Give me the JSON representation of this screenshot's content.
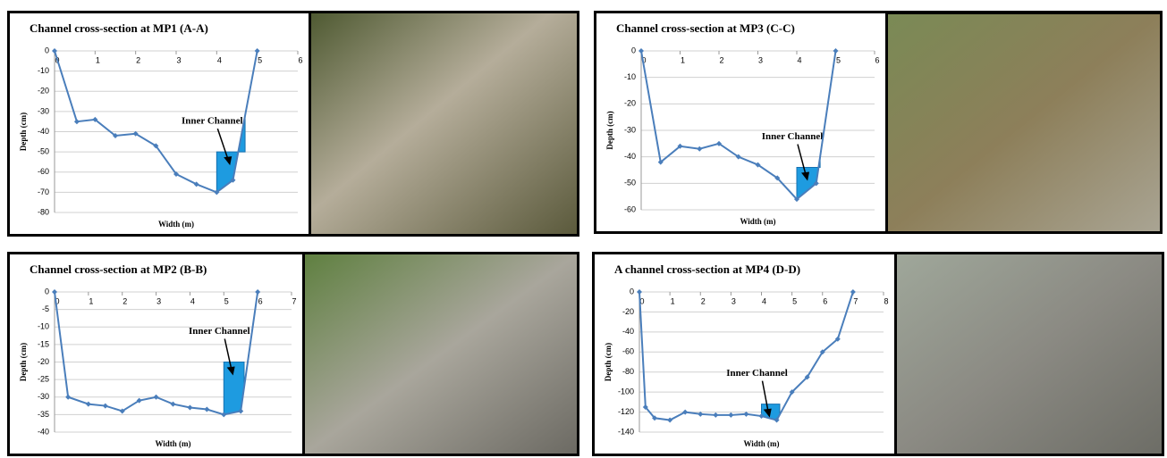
{
  "chart_data": [
    {
      "type": "line",
      "title": "Channel cross-section at MP1 (A-A)",
      "x_label": "Width (m)",
      "y_label": "Depth (cm)",
      "x": [
        0,
        0.55,
        1,
        1.5,
        2,
        2.5,
        3,
        3.5,
        4,
        4.4,
        5
      ],
      "values": [
        0,
        -35,
        -34,
        -42,
        -41,
        -47,
        -61,
        -66,
        -70,
        -64,
        0
      ],
      "color": "#4a7ebb",
      "xlim": [
        0,
        6
      ],
      "xticks": [
        0,
        1,
        2,
        3,
        4,
        5,
        6
      ],
      "ylim": [
        -80,
        0
      ],
      "yticks": [
        0,
        -10,
        -20,
        -30,
        -40,
        -50,
        -60,
        -70,
        -80
      ],
      "grid": true,
      "inner_channel": {
        "label": "Inner Channel",
        "x": [
          4,
          4.7
        ],
        "level": -50,
        "color": "#1e9be0"
      }
    },
    {
      "type": "line",
      "title": "Channel cross-section at MP3 (C-C)",
      "x_label": "Width (m)",
      "y_label": "Depth (cm)",
      "x": [
        0,
        0.5,
        1,
        1.5,
        2,
        2.5,
        3,
        3.5,
        4,
        4.5,
        5
      ],
      "values": [
        0,
        -42,
        -36,
        -37,
        -35,
        -40,
        -43,
        -48,
        -56,
        -50,
        0
      ],
      "color": "#4a7ebb",
      "xlim": [
        0,
        6
      ],
      "xticks": [
        0,
        1,
        2,
        3,
        4,
        5,
        6
      ],
      "ylim": [
        -60,
        0
      ],
      "yticks": [
        0,
        -10,
        -20,
        -30,
        -40,
        -50,
        -60
      ],
      "grid": true,
      "inner_channel": {
        "label": "Inner Channel",
        "x": [
          4,
          4.6
        ],
        "level": -44,
        "color": "#1e9be0"
      }
    },
    {
      "type": "line",
      "title": "Channel cross-section at MP2 (B-B)",
      "x_label": "Width (m)",
      "y_label": "Depth (cm)",
      "x": [
        0,
        0.4,
        1,
        1.5,
        2,
        2.5,
        3,
        3.5,
        4,
        4.5,
        5,
        5.5,
        6
      ],
      "values": [
        0,
        -30,
        -32,
        -32.5,
        -34,
        -31,
        -30,
        -32,
        -33,
        -33.5,
        -35,
        -34,
        0
      ],
      "color": "#4a7ebb",
      "xlim": [
        0,
        7
      ],
      "xticks": [
        0,
        1,
        2,
        3,
        4,
        5,
        6,
        7
      ],
      "ylim": [
        -40,
        0
      ],
      "yticks": [
        0,
        -5,
        -10,
        -15,
        -20,
        -25,
        -30,
        -35,
        -40
      ],
      "grid": true,
      "inner_channel": {
        "label": "Inner Channel",
        "x": [
          5,
          5.6
        ],
        "level": -20,
        "color": "#1e9be0"
      }
    },
    {
      "type": "line",
      "title": "A channel cross-section at MP4 (D-D)",
      "x_label": "Width (m)",
      "y_label": "Depth (cm)",
      "x": [
        0,
        0.2,
        0.5,
        1,
        1.5,
        2,
        2.5,
        3,
        3.5,
        4,
        4.5,
        5,
        5.5,
        6,
        6.5,
        7
      ],
      "values": [
        0,
        -115,
        -126,
        -128,
        -120,
        -122,
        -123,
        -123,
        -122,
        -124,
        -128,
        -100,
        -85,
        -60,
        -47,
        0
      ],
      "color": "#4a7ebb",
      "xlim": [
        0,
        8
      ],
      "xticks": [
        0,
        1,
        2,
        3,
        4,
        5,
        6,
        7,
        8
      ],
      "ylim": [
        -140,
        0
      ],
      "yticks": [
        0,
        -20,
        -40,
        -60,
        -80,
        -100,
        -120,
        -140
      ],
      "grid": true,
      "inner_channel": {
        "label": "Inner Channel",
        "x": [
          4,
          4.6
        ],
        "level": -112,
        "color": "#1e9be0"
      }
    }
  ]
}
